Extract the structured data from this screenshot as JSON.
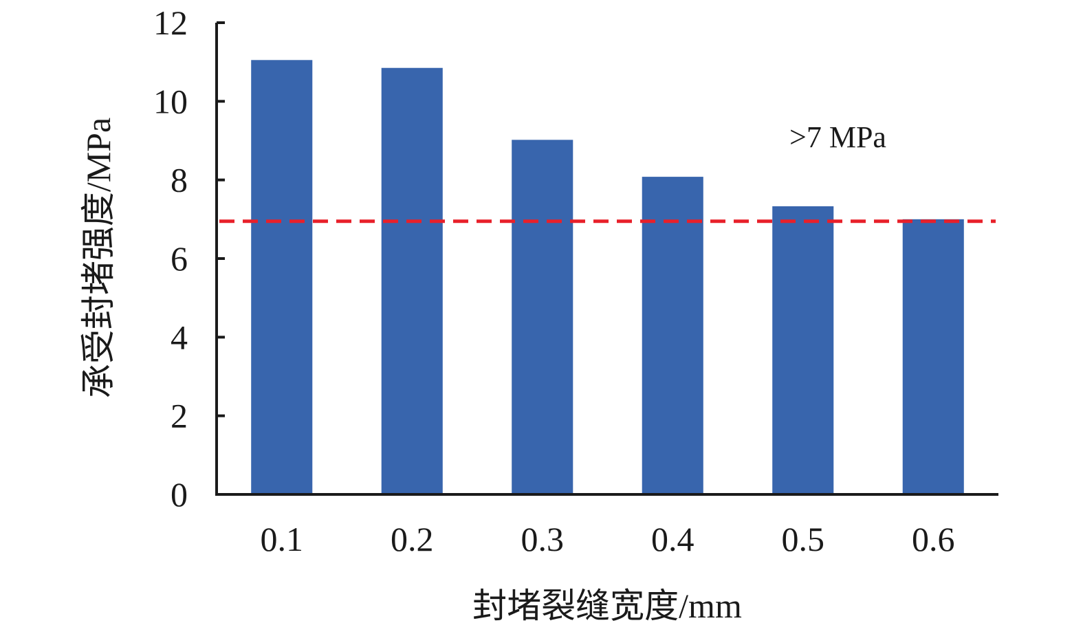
{
  "chart_data": {
    "type": "bar",
    "categories": [
      "0.1",
      "0.2",
      "0.3",
      "0.4",
      "0.5",
      "0.6"
    ],
    "values": [
      11.05,
      10.85,
      9.02,
      8.08,
      7.33,
      7.0
    ],
    "title": "",
    "xlabel": "封堵裂缝宽度/mm",
    "ylabel": "承受封堵强度/MPa",
    "ylim": [
      0,
      12
    ],
    "yticks": [
      "0",
      "2",
      "4",
      "6",
      "8",
      "10",
      "12"
    ],
    "grid": false,
    "reference_line": {
      "value": 6.95,
      "style": "dashed",
      "color": "#e8202a"
    },
    "annotation": ">7 MPa",
    "bar_color": "#3865ad"
  }
}
